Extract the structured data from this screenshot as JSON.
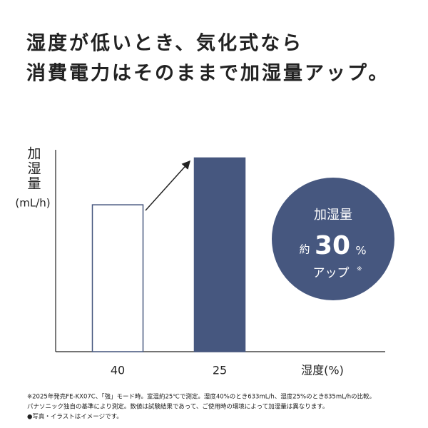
{
  "chart_data": {
    "type": "bar",
    "title": [
      "湿度が低いとき、気化式なら",
      "消費電力はそのままで加湿量アップ。"
    ],
    "y_label": "加湿量",
    "y_unit": "(mL/h)",
    "x_label": "湿度(%)",
    "categories": [
      "40",
      "25"
    ],
    "values": [
      633,
      835
    ],
    "colors": [
      "#ffffff",
      "#46577f"
    ],
    "edge_color": "#46577f",
    "ylim": [
      0,
      870
    ],
    "annotation": {
      "line1": "加湿量",
      "prefix": "約",
      "value": 30,
      "unit": "%",
      "line3": "アップ",
      "mark": "※"
    },
    "footnotes": [
      "※2025年発売FE-KX07C、「強」モード時。室温約25℃で測定。湿度40%のとき633mL/h、湿度25%のとき835mL/hの比較。",
      "パナソニック独自の基準により測定。数値は試験結果であって、ご使用時の環境によって加湿量は異なります。",
      "●写真・イラストはイメージです。"
    ]
  }
}
